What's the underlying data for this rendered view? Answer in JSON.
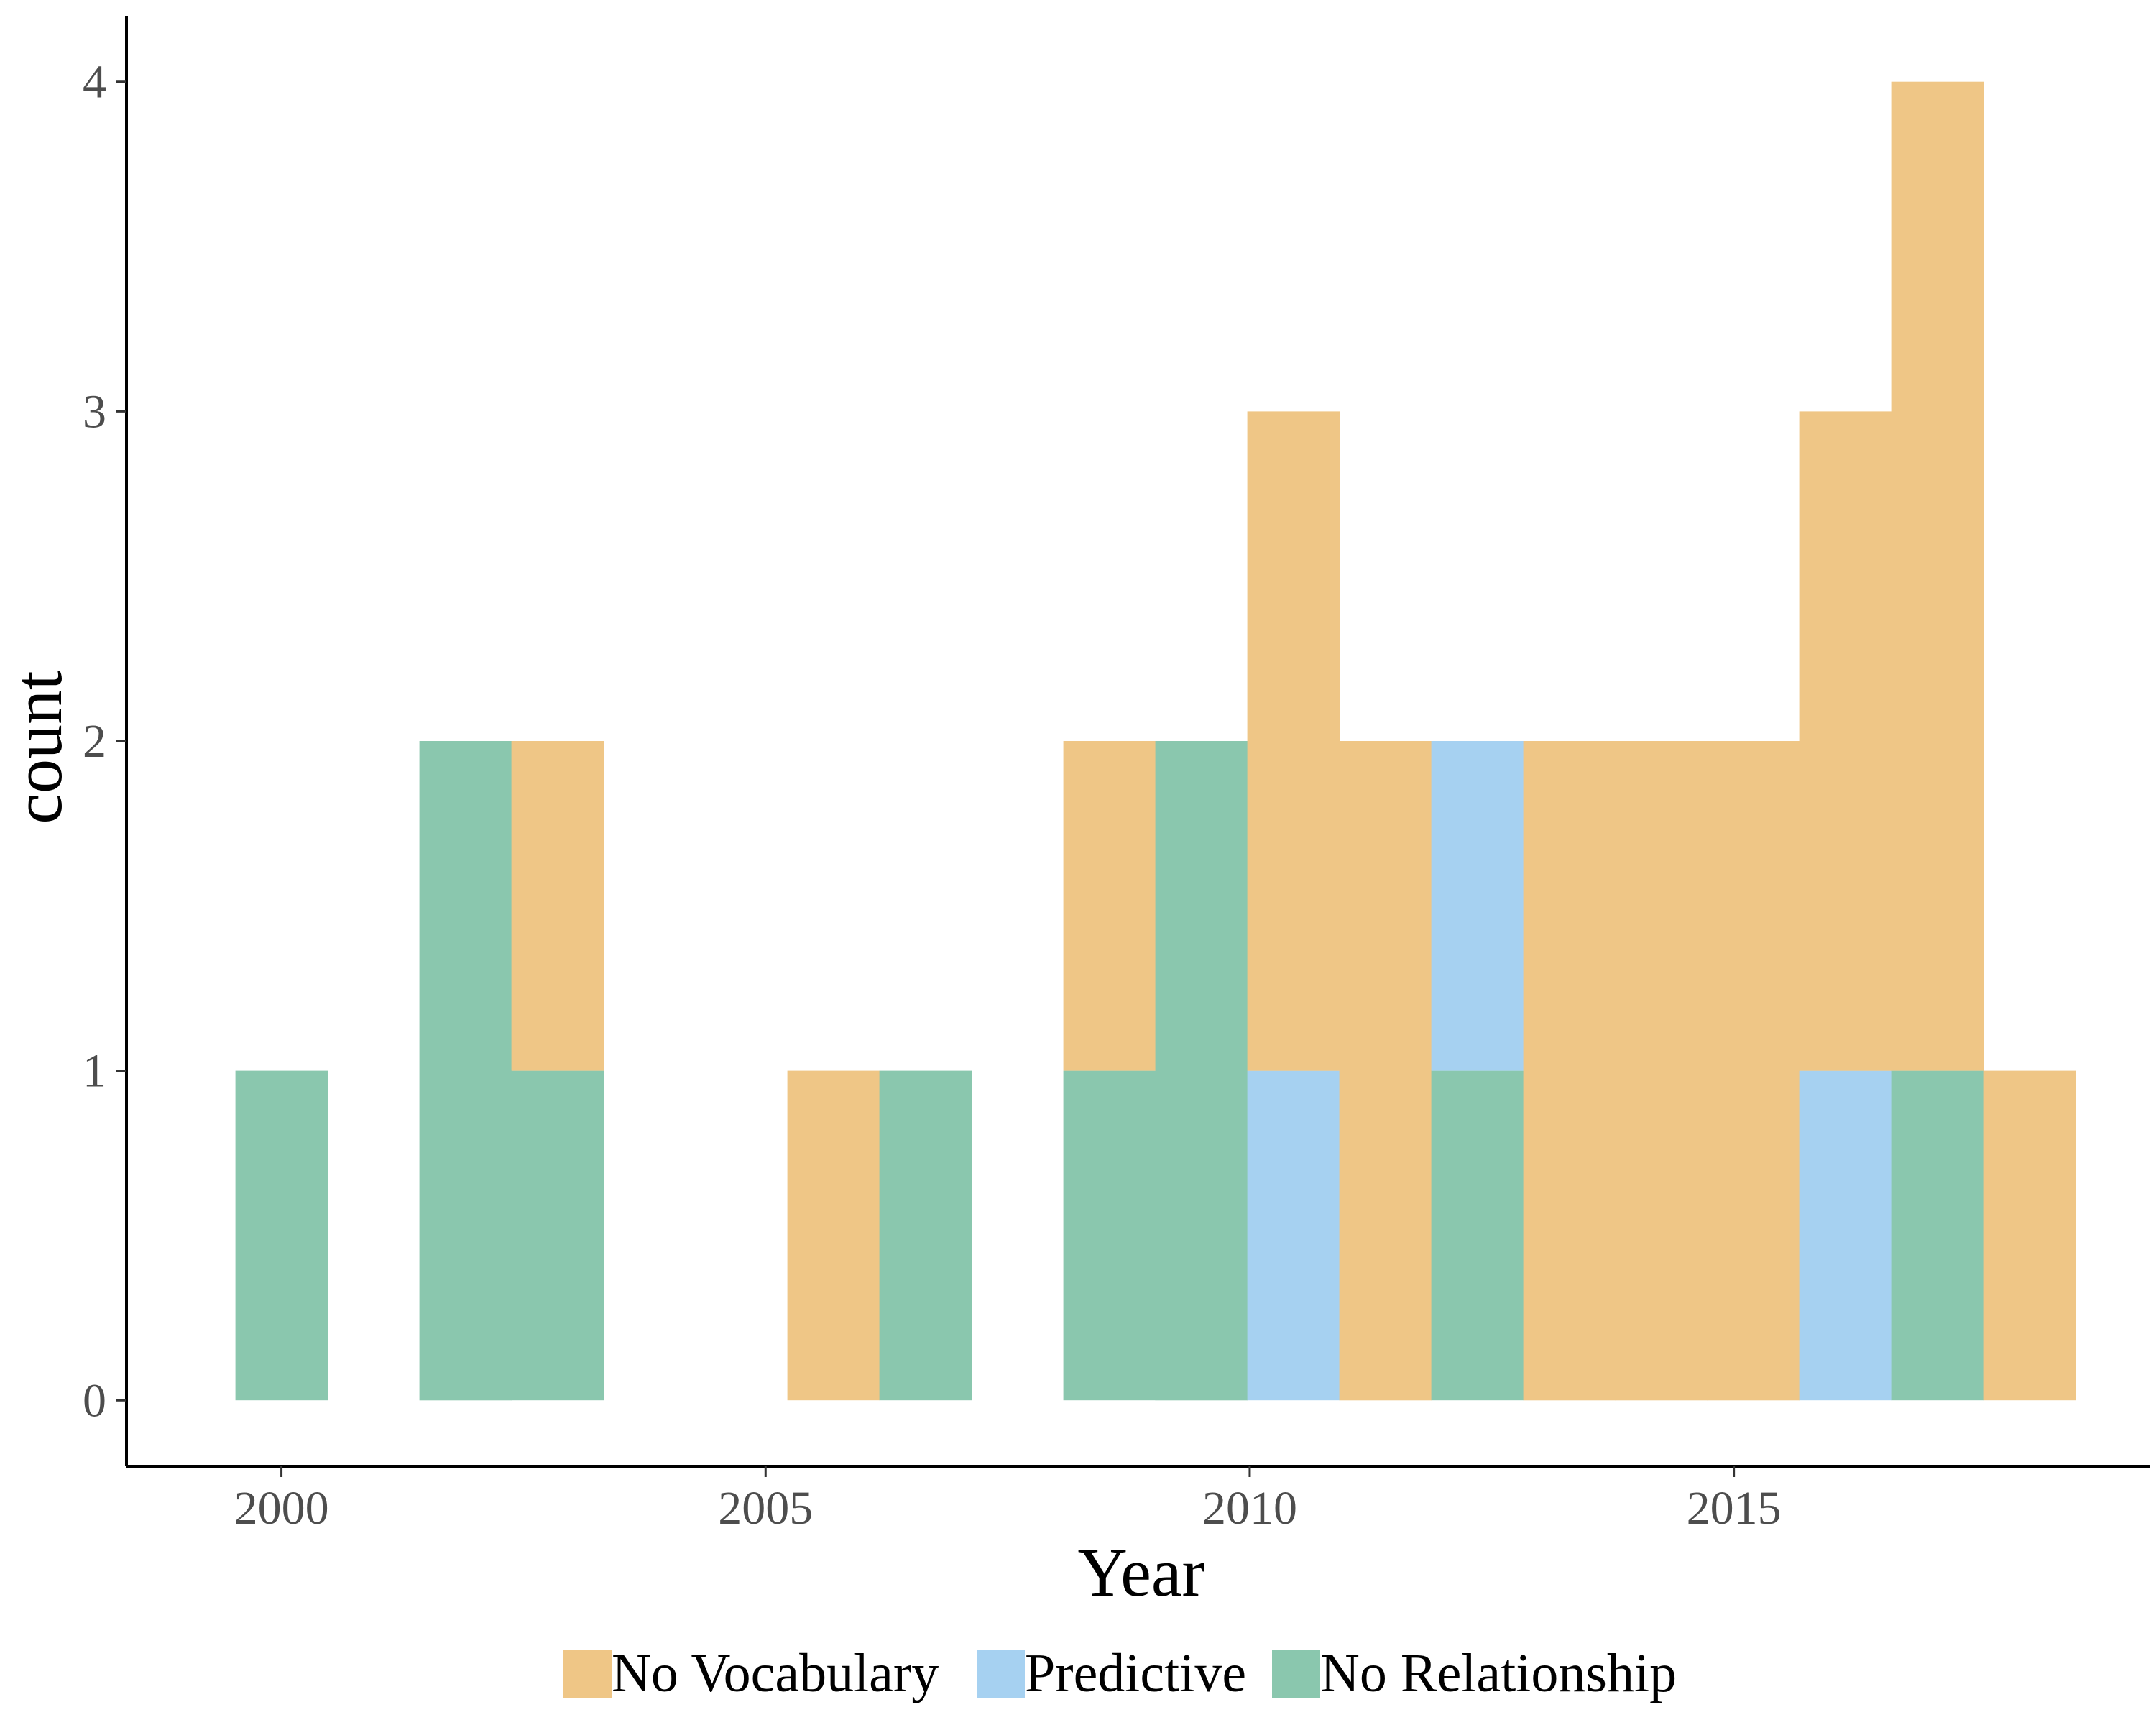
{
  "chart_data": {
    "type": "bar",
    "stacked": true,
    "xlabel": "Year",
    "ylabel": "count",
    "xlim": [
      1998.4,
      2019.3
    ],
    "ylim": [
      -0.2,
      4.2
    ],
    "x_ticks": [
      2000,
      2005,
      2010,
      2015
    ],
    "y_ticks": [
      0,
      1,
      2,
      3,
      4
    ],
    "bin_width": 0.95,
    "grid": false,
    "legend_position": "bottom",
    "x": [
      2000,
      2001.9,
      2002.85,
      2005.7,
      2006.65,
      2008.55,
      2009.5,
      2010.45,
      2011.4,
      2012.35,
      2013.3,
      2014.25,
      2015.2,
      2016.15,
      2017.1,
      2018.05
    ],
    "series": [
      {
        "name": "No Relationship",
        "color": "#8AC7AE",
        "values": [
          1,
          2,
          1,
          0,
          1,
          1,
          2,
          0,
          0,
          1,
          0,
          0,
          0,
          0,
          1,
          0
        ]
      },
      {
        "name": "Predictive",
        "color": "#A6D1F1",
        "values": [
          0,
          0,
          0,
          0,
          0,
          0,
          0,
          1,
          0,
          1,
          0,
          0,
          0,
          1,
          0,
          0
        ]
      },
      {
        "name": "No Vocabulary",
        "color": "#EFC686",
        "values": [
          0,
          0,
          1,
          1,
          0,
          1,
          0,
          2,
          2,
          0,
          2,
          2,
          2,
          2,
          3,
          1
        ]
      }
    ],
    "legend": [
      "No Vocabulary",
      "Predictive",
      "No Relationship"
    ]
  }
}
